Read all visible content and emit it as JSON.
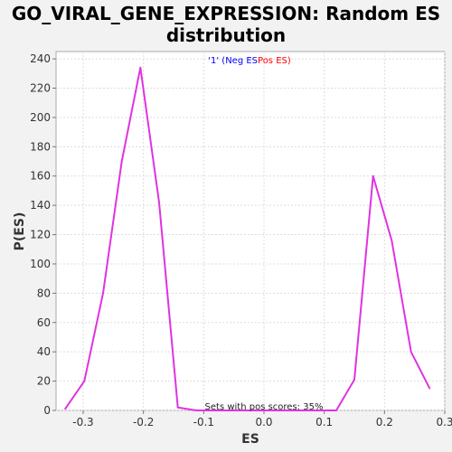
{
  "chart_data": {
    "type": "line",
    "title_line1": "GO_VIRAL_GENE_EXPRESSION: Random ES",
    "title_line2": "distribution",
    "xlabel": "ES",
    "ylabel": "P(ES)",
    "xlim": [
      -0.345,
      0.3
    ],
    "ylim": [
      0,
      245
    ],
    "x_ticks": [
      -0.3,
      -0.2,
      -0.1,
      0.0,
      0.1,
      0.2,
      0.3
    ],
    "y_ticks": [
      0,
      20,
      40,
      60,
      80,
      100,
      120,
      140,
      160,
      180,
      200,
      220,
      240
    ],
    "grid": true,
    "legend": {
      "placement": "top-center",
      "prefix": "'1' (",
      "neg_label": "Neg ES",
      "neg_color": "#0000ff",
      "pos_label": "Pos ES)",
      "pos_color": "#ff0000"
    },
    "annotation": "Sets with pos scores: 35%",
    "series": [
      {
        "color": "#e033e0",
        "x": [
          -0.33,
          -0.298,
          -0.267,
          -0.236,
          -0.205,
          -0.174,
          -0.143,
          -0.112,
          -0.081,
          0.12,
          0.15,
          0.181,
          0.212,
          0.244,
          0.275
        ],
        "y": [
          1,
          20,
          80,
          170,
          234,
          142,
          2,
          0,
          0,
          0,
          21,
          160,
          116,
          40,
          15
        ]
      }
    ]
  }
}
